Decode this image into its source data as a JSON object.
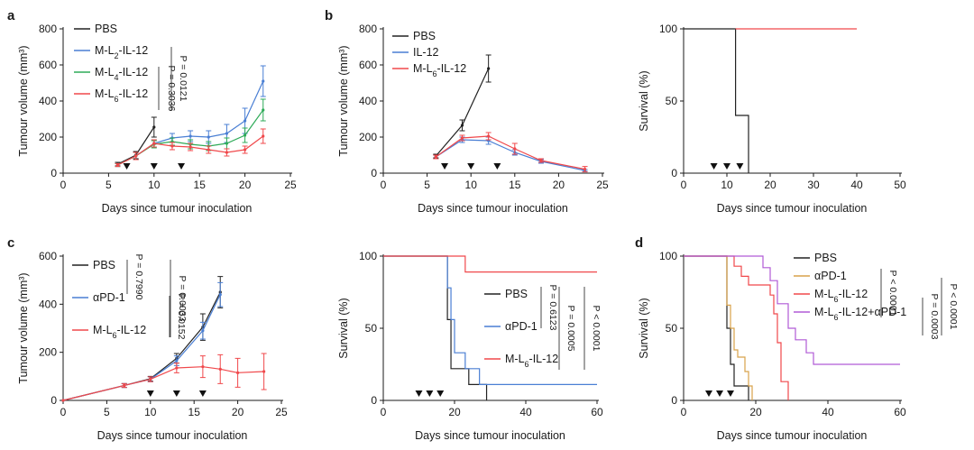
{
  "colors": {
    "PBS": "#222222",
    "L2": "#4a7fd4",
    "L4": "#2eab58",
    "L6": "#f0484b",
    "aPD1": "#4a7fd4",
    "aPD1_d": "#d8a24a",
    "combo": "#b05ad6"
  },
  "chart_data": [
    {
      "type": "line",
      "panel_letter": "a",
      "xlabel": "Days since tumour inoculation",
      "ylabel": "Tumour volume (mm³)",
      "xlim": [
        0,
        25
      ],
      "ylim": [
        0,
        800
      ],
      "xticks": [
        0,
        5,
        10,
        15,
        20,
        25
      ],
      "yticks": [
        0,
        200,
        400,
        600,
        800
      ],
      "dosing_days": [
        7,
        10,
        13
      ],
      "series": [
        {
          "name": "PBS",
          "color": "#222222",
          "x": [
            6,
            8,
            10
          ],
          "y": [
            50,
            100,
            255
          ],
          "err": [
            10,
            20,
            55
          ]
        },
        {
          "name": "M-L2-IL-12",
          "color": "#4a7fd4",
          "x": [
            6,
            8,
            10,
            12,
            14,
            16,
            18,
            20,
            22
          ],
          "y": [
            45,
            95,
            165,
            195,
            205,
            200,
            220,
            290,
            510
          ],
          "err": [
            8,
            20,
            20,
            25,
            30,
            35,
            50,
            70,
            85
          ]
        },
        {
          "name": "M-L4-IL-12",
          "color": "#2eab58",
          "x": [
            6,
            8,
            10,
            12,
            14,
            16,
            18,
            20,
            22
          ],
          "y": [
            45,
            95,
            160,
            175,
            160,
            150,
            165,
            210,
            350
          ],
          "err": [
            8,
            20,
            20,
            20,
            25,
            25,
            30,
            40,
            60
          ]
        },
        {
          "name": "M-L6-IL-12",
          "color": "#f0484b",
          "x": [
            6,
            8,
            10,
            12,
            14,
            16,
            18,
            20,
            22
          ],
          "y": [
            45,
            95,
            165,
            150,
            145,
            130,
            115,
            130,
            205
          ],
          "err": [
            8,
            20,
            20,
            20,
            20,
            20,
            20,
            20,
            40
          ]
        }
      ],
      "legend": [
        {
          "label": "PBS",
          "base": "PBS",
          "sub": ""
        },
        {
          "label": "M-L2-IL-12",
          "base": "M-L",
          "sub": "2",
          "tail": "-IL-12"
        },
        {
          "label": "M-L4-IL-12",
          "base": "M-L",
          "sub": "4",
          "tail": "-IL-12"
        },
        {
          "label": "M-L6-IL-12",
          "base": "M-L",
          "sub": "6",
          "tail": "-IL-12"
        }
      ],
      "annotations": [
        "P = 0.3036",
        "P = 0.0121"
      ]
    },
    {
      "type": "line",
      "panel_letter": "b",
      "xlabel": "Days since tumour inoculation",
      "ylabel": "Tumour volume (mm³)",
      "xlim": [
        0,
        25
      ],
      "ylim": [
        0,
        800
      ],
      "xticks": [
        0,
        5,
        10,
        15,
        20,
        25
      ],
      "yticks": [
        0,
        200,
        400,
        600,
        800
      ],
      "dosing_days": [
        7,
        10,
        13
      ],
      "series": [
        {
          "name": "PBS",
          "color": "#222222",
          "x": [
            6,
            9,
            12
          ],
          "y": [
            95,
            265,
            580
          ],
          "err": [
            10,
            30,
            75
          ]
        },
        {
          "name": "IL-12",
          "color": "#4a7fd4",
          "x": [
            6,
            9,
            12,
            15,
            18,
            23
          ],
          "y": [
            90,
            185,
            180,
            115,
            65,
            15
          ],
          "err": [
            10,
            15,
            20,
            15,
            10,
            5
          ]
        },
        {
          "name": "M-L6-IL-12",
          "color": "#f0484b",
          "x": [
            6,
            9,
            12,
            15,
            18,
            23
          ],
          "y": [
            90,
            195,
            205,
            135,
            70,
            22
          ],
          "err": [
            10,
            15,
            20,
            30,
            10,
            15
          ]
        }
      ],
      "legend": [
        {
          "label": "PBS",
          "base": "PBS",
          "sub": ""
        },
        {
          "label": "IL-12",
          "base": "IL-12",
          "sub": ""
        },
        {
          "label": "M-L6-IL-12",
          "base": "M-L",
          "sub": "6",
          "tail": "-IL-12"
        }
      ]
    },
    {
      "type": "line",
      "panel_letter": "",
      "xlabel": "Days since tumour inoculation",
      "ylabel": "Survival (%)",
      "xlim": [
        0,
        50
      ],
      "ylim": [
        0,
        100
      ],
      "xticks": [
        0,
        10,
        20,
        30,
        40,
        50
      ],
      "yticks": [
        0,
        50,
        100
      ],
      "dosing_days": [
        7,
        10,
        13
      ],
      "series": [
        {
          "name": "PBS",
          "color": "#222222",
          "steps": [
            [
              0,
              100
            ],
            [
              12,
              100
            ],
            [
              12,
              40
            ],
            [
              15,
              40
            ],
            [
              15,
              0
            ]
          ]
        },
        {
          "name": "M-L6-IL-12",
          "color": "#f0484b",
          "steps": [
            [
              12,
              100
            ],
            [
              40,
              100
            ]
          ]
        }
      ]
    },
    {
      "type": "line",
      "panel_letter": "c",
      "xlabel": "Days since tumour inoculation",
      "ylabel": "Tumour volume (mm³)",
      "xlim": [
        0,
        25
      ],
      "ylim": [
        0,
        600
      ],
      "xticks": [
        0,
        5,
        10,
        15,
        20,
        25
      ],
      "yticks": [
        0,
        200,
        400,
        600
      ],
      "dosing_days": [
        10,
        13,
        16
      ],
      "series": [
        {
          "name": "PBS",
          "color": "#222222",
          "x": [
            0,
            7,
            10,
            13,
            16,
            18
          ],
          "y": [
            0,
            62,
            90,
            175,
            305,
            450
          ],
          "err": [
            0,
            8,
            10,
            20,
            55,
            65
          ]
        },
        {
          "name": "αPD-1",
          "color": "#4a7fd4",
          "x": [
            0,
            7,
            10,
            13,
            16,
            18
          ],
          "y": [
            0,
            62,
            88,
            165,
            290,
            440
          ],
          "err": [
            0,
            8,
            10,
            20,
            35,
            50
          ]
        },
        {
          "name": "M-L6-IL-12",
          "color": "#f0484b",
          "x": [
            0,
            7,
            10,
            13,
            16,
            18,
            20,
            23
          ],
          "y": [
            0,
            62,
            88,
            135,
            140,
            130,
            115,
            120
          ],
          "err": [
            0,
            8,
            10,
            20,
            45,
            60,
            60,
            75
          ]
        }
      ],
      "legend": [
        {
          "label": "PBS",
          "base": "PBS",
          "sub": ""
        },
        {
          "label": "αPD-1",
          "base": "αPD-1",
          "sub": ""
        },
        {
          "label": "M-L6-IL-12",
          "base": "M-L",
          "sub": "6",
          "tail": "-IL-12"
        }
      ],
      "annotations": [
        "P = 0.7990",
        "P = 0.0152",
        "P = 0.0033"
      ]
    },
    {
      "type": "line",
      "panel_letter": "",
      "xlabel": "Days since tumour inoculation",
      "ylabel": "Survival (%)",
      "xlim": [
        0,
        60
      ],
      "ylim": [
        0,
        100
      ],
      "xticks": [
        0,
        20,
        40,
        60
      ],
      "yticks": [
        0,
        50,
        100
      ],
      "dosing_days": [
        10,
        13,
        16
      ],
      "series": [
        {
          "name": "PBS",
          "color": "#222222",
          "steps": [
            [
              0,
              100
            ],
            [
              18,
              100
            ],
            [
              18,
              56
            ],
            [
              19,
              56
            ],
            [
              19,
              22
            ],
            [
              24,
              22
            ],
            [
              24,
              11
            ],
            [
              29,
              11
            ],
            [
              29,
              0
            ]
          ]
        },
        {
          "name": "αPD-1",
          "color": "#4a7fd4",
          "steps": [
            [
              0,
              100
            ],
            [
              18,
              100
            ],
            [
              18,
              78
            ],
            [
              19,
              78
            ],
            [
              19,
              56
            ],
            [
              20,
              56
            ],
            [
              20,
              33
            ],
            [
              23,
              33
            ],
            [
              23,
              22
            ],
            [
              27,
              22
            ],
            [
              27,
              11
            ],
            [
              60,
              11
            ]
          ]
        },
        {
          "name": "M-L6-IL-12",
          "color": "#f0484b",
          "steps": [
            [
              0,
              100
            ],
            [
              23,
              100
            ],
            [
              23,
              89
            ],
            [
              60,
              89
            ]
          ]
        }
      ],
      "legend": [
        {
          "label": "PBS",
          "base": "PBS",
          "sub": ""
        },
        {
          "label": "αPD-1",
          "base": "αPD-1",
          "sub": ""
        },
        {
          "label": "M-L6-IL-12",
          "base": "M-L",
          "sub": "6",
          "tail": "-IL-12"
        }
      ],
      "annotations": [
        "P = 0.6123",
        "P = 0.0005",
        "P < 0.0001"
      ]
    },
    {
      "type": "line",
      "panel_letter": "d",
      "xlabel": "Days since tumour inoculation",
      "ylabel": "Survival (%)",
      "xlim": [
        0,
        60
      ],
      "ylim": [
        0,
        100
      ],
      "xticks": [
        0,
        20,
        40,
        60
      ],
      "yticks": [
        0,
        50,
        100
      ],
      "dosing_days": [
        7,
        10,
        13
      ],
      "series": [
        {
          "name": "PBS",
          "color": "#222222",
          "steps": [
            [
              0,
              100
            ],
            [
              12,
              100
            ],
            [
              12,
              50
            ],
            [
              13,
              50
            ],
            [
              13,
              25
            ],
            [
              14,
              25
            ],
            [
              14,
              10
            ],
            [
              18,
              10
            ],
            [
              18,
              0
            ]
          ]
        },
        {
          "name": "αPD-1",
          "color": "#d8a24a",
          "steps": [
            [
              0,
              100
            ],
            [
              12,
              100
            ],
            [
              12,
              66
            ],
            [
              13,
              66
            ],
            [
              13,
              50
            ],
            [
              14,
              50
            ],
            [
              14,
              35
            ],
            [
              15,
              35
            ],
            [
              15,
              30
            ],
            [
              17,
              30
            ],
            [
              17,
              20
            ],
            [
              18,
              20
            ],
            [
              18,
              10
            ],
            [
              19,
              10
            ],
            [
              19,
              0
            ]
          ]
        },
        {
          "name": "M-L6-IL-12",
          "color": "#f0484b",
          "steps": [
            [
              0,
              100
            ],
            [
              14,
              100
            ],
            [
              14,
              93
            ],
            [
              16,
              93
            ],
            [
              16,
              86
            ],
            [
              18,
              86
            ],
            [
              18,
              80
            ],
            [
              24,
              80
            ],
            [
              24,
              73
            ],
            [
              25,
              73
            ],
            [
              25,
              60
            ],
            [
              26,
              60
            ],
            [
              26,
              40
            ],
            [
              27,
              40
            ],
            [
              27,
              13
            ],
            [
              29,
              13
            ],
            [
              29,
              0
            ]
          ]
        },
        {
          "name": "M-L6-IL-12+αPD-1",
          "color": "#b05ad6",
          "steps": [
            [
              0,
              100
            ],
            [
              22,
              100
            ],
            [
              22,
              92
            ],
            [
              24,
              92
            ],
            [
              24,
              83
            ],
            [
              26,
              83
            ],
            [
              26,
              67
            ],
            [
              29,
              67
            ],
            [
              29,
              50
            ],
            [
              31,
              50
            ],
            [
              31,
              42
            ],
            [
              34,
              42
            ],
            [
              34,
              33
            ],
            [
              36,
              33
            ],
            [
              36,
              25
            ],
            [
              60,
              25
            ]
          ]
        }
      ],
      "legend": [
        {
          "label": "PBS",
          "base": "PBS",
          "sub": ""
        },
        {
          "label": "αPD-1",
          "base": "αPD-1",
          "sub": ""
        },
        {
          "label": "M-L6-IL-12",
          "base": "M-L",
          "sub": "6",
          "tail": "-IL-12"
        },
        {
          "label": "M-L6-IL-12+αPD-1",
          "base": "M-L",
          "sub": "6",
          "tail": "-IL-12+αPD-1"
        }
      ],
      "annotations": [
        "P < 0.0001",
        "P = 0.0003",
        "P < 0.0001"
      ]
    }
  ]
}
